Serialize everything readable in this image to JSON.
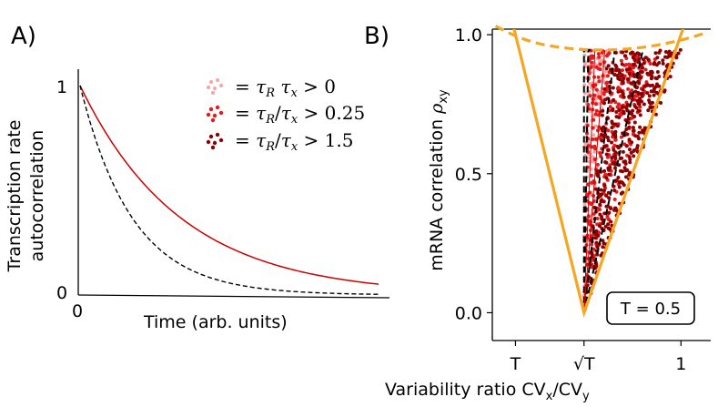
{
  "chart_data": [
    {
      "panel_label": "A)",
      "type": "line",
      "xlabel": "Time (arb. units)",
      "ylabel": [
        "Transcription rate",
        "autocorrelation"
      ],
      "x_ticks": [
        "0"
      ],
      "y_ticks": [
        "1",
        "0"
      ],
      "xlim": [
        0,
        4
      ],
      "ylim": [
        0,
        1
      ],
      "legend": {
        "placement": "top-right",
        "entries": [
          {
            "label": "= τ_R τ_x > 0",
            "color": "#f4a6a6"
          },
          {
            "label": "= τ_R/τ_x > 0.25",
            "color": "#e41a1c"
          },
          {
            "label": "= τ_R/τ_x > 1.5",
            "color": "#8b0000"
          }
        ]
      },
      "series": [
        {
          "style": "solid",
          "color": "#cc0000",
          "decay_time": 1.35
        },
        {
          "style": "dashed",
          "color": "#000000",
          "decay_time": 0.7
        }
      ]
    },
    {
      "panel_label": "B)",
      "type": "scatter",
      "xlabel": "Variability ratio CV_x/CV_y",
      "ylabel": "mRNA correlation ρ_xy",
      "x_ticks": [
        {
          "value": 0.5,
          "label": "T"
        },
        {
          "value": 0.7071,
          "label": "√T"
        },
        {
          "value": 1.0,
          "label": "1"
        }
      ],
      "y_ticks": [
        {
          "value": 0.0,
          "label": "0.0"
        },
        {
          "value": 0.5,
          "label": "0.5"
        },
        {
          "value": 1.0,
          "label": "1.0"
        }
      ],
      "xlim": [
        0.43,
        1.09
      ],
      "ylim": [
        -0.1,
        1.02
      ],
      "annotation": "T = 0.5",
      "T": 0.5,
      "boundary_color": "#f5a623",
      "dashed_curve": {
        "points": [
          [
            0.44,
            1.09
          ],
          [
            0.55,
            1.0
          ],
          [
            0.65,
            0.96
          ],
          [
            0.72,
            0.945
          ],
          [
            0.8,
            0.95
          ],
          [
            0.9,
            0.97
          ],
          [
            1.0,
            1.0
          ],
          [
            1.08,
            1.05
          ]
        ]
      },
      "wedge_regions": [
        {
          "name": "τ_R τ_x > 0",
          "color": "#f4a6a6",
          "x_top_range": [
            0.707,
            0.78
          ]
        },
        {
          "name": "τ_R/τ_x > 0.25",
          "color": "#e41a1c",
          "x_top_range": [
            0.72,
            0.93
          ]
        },
        {
          "name": "τ_R/τ_x > 1.5",
          "color": "#8b0000",
          "x_top_range": [
            0.78,
            1.0
          ]
        }
      ]
    }
  ]
}
